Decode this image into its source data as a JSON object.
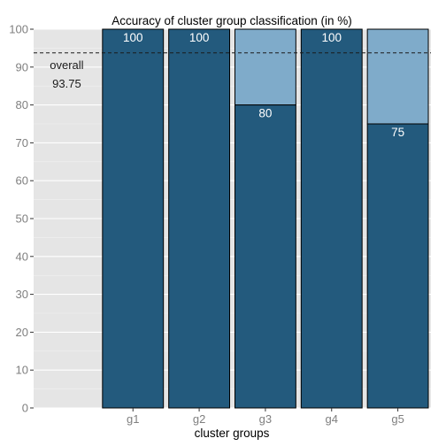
{
  "chart_data": {
    "type": "bar",
    "title": "Accuracy of cluster group classification (in %)",
    "xlabel": "cluster groups",
    "ylabel": "",
    "ylim": [
      0,
      100
    ],
    "yticks": [
      0,
      10,
      20,
      30,
      40,
      50,
      60,
      70,
      80,
      90,
      100
    ],
    "categories": [
      "g1",
      "g2",
      "g3",
      "g4",
      "g5"
    ],
    "values": [
      100,
      100,
      80,
      100,
      75
    ],
    "value_labels": [
      "100",
      "100",
      "80",
      "100",
      "75"
    ],
    "reference_line": {
      "value": 93.75,
      "style": "dashed",
      "label_line1": "overall",
      "label_line2": "93.75"
    },
    "grid": true,
    "legend": "none",
    "colors": {
      "bar": "#235a7d",
      "remainder": "#7fabca",
      "panel": "#e5e5e5",
      "grid": "#ffffff"
    }
  }
}
